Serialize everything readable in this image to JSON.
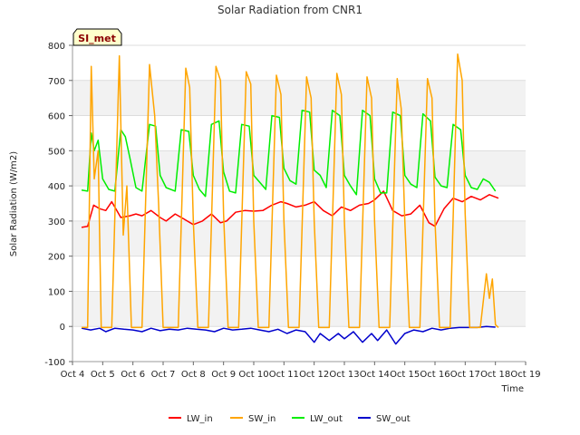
{
  "chart_data": {
    "type": "line",
    "title": "Solar Radiation from CNR1",
    "xlabel": "Time",
    "ylabel": "Solar Radiation (W/m2)",
    "station_label": "SI_met",
    "x_tick_labels": [
      "Oct 4",
      "Oct 5",
      "Oct 6",
      "Oct 7",
      "Oct 8",
      "Oct 9",
      "Oct 10",
      "Oct 11",
      "Oct 12",
      "Oct 13",
      "Oct 14",
      "Oct 15",
      "Oct 16",
      "Oct 17",
      "Oct 18",
      "Oct 19"
    ],
    "y_ticks": [
      -100,
      0,
      100,
      200,
      300,
      400,
      500,
      600,
      700,
      800
    ],
    "xlim": [
      4,
      19
    ],
    "ylim": [
      -100,
      800
    ],
    "grid": true,
    "legend_placement": "bottom",
    "colors": {
      "LW_in": "#ff0000",
      "SW_in": "#ffa500",
      "LW_out": "#00ee00",
      "SW_out": "#0000cc"
    },
    "series": [
      {
        "name": "LW_in",
        "color": "#ff0000",
        "x": [
          4.3,
          4.5,
          4.7,
          4.9,
          5.1,
          5.3,
          5.6,
          5.9,
          6.1,
          6.3,
          6.6,
          6.9,
          7.1,
          7.4,
          7.7,
          8.0,
          8.3,
          8.6,
          8.9,
          9.1,
          9.4,
          9.7,
          10.0,
          10.3,
          10.6,
          10.9,
          11.1,
          11.4,
          11.7,
          12.0,
          12.3,
          12.6,
          12.9,
          13.2,
          13.5,
          13.8,
          14.0,
          14.3,
          14.6,
          14.9,
          15.2,
          15.5,
          15.8,
          16.0,
          16.3,
          16.6,
          16.9,
          17.2,
          17.5,
          17.8,
          18.1
        ],
        "y": [
          282,
          285,
          345,
          335,
          330,
          355,
          310,
          315,
          320,
          315,
          330,
          310,
          300,
          320,
          305,
          290,
          300,
          320,
          295,
          300,
          325,
          330,
          328,
          330,
          345,
          355,
          350,
          340,
          345,
          355,
          330,
          315,
          340,
          330,
          345,
          350,
          360,
          385,
          330,
          315,
          320,
          345,
          295,
          285,
          335,
          365,
          355,
          370,
          360,
          375,
          365
        ]
      },
      {
        "name": "SW_in",
        "color": "#ffa500",
        "x": [
          4.3,
          4.5,
          4.62,
          4.72,
          4.85,
          4.95,
          5.1,
          5.3,
          5.55,
          5.68,
          5.8,
          5.95,
          6.1,
          6.3,
          6.55,
          6.72,
          6.85,
          7.0,
          7.15,
          7.3,
          7.5,
          7.75,
          7.88,
          8.0,
          8.15,
          8.3,
          8.5,
          8.75,
          8.9,
          9.0,
          9.15,
          9.3,
          9.5,
          9.75,
          9.9,
          10.0,
          10.15,
          10.3,
          10.5,
          10.75,
          10.9,
          11.0,
          11.15,
          11.3,
          11.5,
          11.75,
          11.9,
          12.0,
          12.15,
          12.3,
          12.5,
          12.75,
          12.9,
          13.0,
          13.15,
          13.3,
          13.5,
          13.75,
          13.9,
          14.0,
          14.15,
          14.3,
          14.5,
          14.75,
          14.88,
          15.0,
          15.15,
          15.3,
          15.5,
          15.75,
          15.9,
          16.0,
          16.15,
          16.3,
          16.5,
          16.75,
          16.9,
          17.0,
          17.15,
          17.3,
          17.5,
          17.7,
          17.8,
          17.9,
          18.0,
          18.1
        ],
        "y": [
          -3,
          -3,
          740,
          420,
          500,
          -3,
          -3,
          -3,
          770,
          260,
          400,
          -3,
          -3,
          -3,
          745,
          600,
          350,
          -3,
          -3,
          -3,
          -3,
          735,
          680,
          300,
          -3,
          -3,
          -3,
          740,
          700,
          320,
          -3,
          -3,
          -3,
          725,
          690,
          300,
          -3,
          -3,
          -3,
          715,
          660,
          300,
          -3,
          -3,
          -3,
          710,
          650,
          300,
          -3,
          -3,
          -3,
          720,
          660,
          300,
          -3,
          -3,
          -3,
          710,
          650,
          300,
          -3,
          -3,
          -3,
          705,
          620,
          300,
          -3,
          -3,
          -3,
          705,
          650,
          300,
          -3,
          -3,
          -3,
          775,
          700,
          320,
          -3,
          -3,
          -3,
          150,
          80,
          135,
          5,
          -3
        ]
      },
      {
        "name": "LW_out",
        "color": "#00ee00",
        "x": [
          4.3,
          4.5,
          4.62,
          4.72,
          4.85,
          5.0,
          5.2,
          5.4,
          5.6,
          5.75,
          5.9,
          6.1,
          6.3,
          6.55,
          6.75,
          6.9,
          7.1,
          7.4,
          7.6,
          7.85,
          8.0,
          8.2,
          8.4,
          8.6,
          8.85,
          9.0,
          9.2,
          9.4,
          9.6,
          9.85,
          10.0,
          10.2,
          10.4,
          10.6,
          10.85,
          11.0,
          11.2,
          11.4,
          11.6,
          11.85,
          12.0,
          12.2,
          12.4,
          12.6,
          12.85,
          13.0,
          13.2,
          13.4,
          13.6,
          13.85,
          14.0,
          14.2,
          14.4,
          14.6,
          14.85,
          15.0,
          15.2,
          15.4,
          15.6,
          15.85,
          16.0,
          16.2,
          16.4,
          16.6,
          16.85,
          17.0,
          17.2,
          17.4,
          17.6,
          17.8,
          18.0
        ],
        "y": [
          388,
          385,
          550,
          500,
          530,
          420,
          390,
          385,
          560,
          540,
          480,
          395,
          385,
          575,
          570,
          430,
          395,
          385,
          560,
          555,
          430,
          390,
          370,
          575,
          585,
          440,
          385,
          380,
          575,
          570,
          430,
          410,
          390,
          600,
          595,
          450,
          415,
          405,
          615,
          610,
          445,
          430,
          395,
          615,
          600,
          430,
          400,
          375,
          615,
          600,
          420,
          380,
          380,
          610,
          600,
          430,
          405,
          395,
          605,
          585,
          425,
          400,
          395,
          575,
          560,
          430,
          395,
          390,
          420,
          410,
          385
        ]
      },
      {
        "name": "SW_out",
        "color": "#0000cc",
        "x": [
          4.3,
          4.6,
          4.9,
          5.1,
          5.4,
          5.7,
          6.0,
          6.3,
          6.6,
          6.9,
          7.2,
          7.5,
          7.8,
          8.1,
          8.4,
          8.7,
          9.0,
          9.3,
          9.6,
          9.9,
          10.2,
          10.5,
          10.8,
          11.1,
          11.4,
          11.7,
          12.0,
          12.2,
          12.5,
          12.8,
          13.0,
          13.3,
          13.6,
          13.9,
          14.1,
          14.4,
          14.7,
          15.0,
          15.3,
          15.6,
          15.9,
          16.2,
          16.5,
          16.8,
          17.1,
          17.4,
          17.7,
          18.0
        ],
        "y": [
          -5,
          -10,
          -5,
          -15,
          -5,
          -8,
          -10,
          -15,
          -5,
          -12,
          -8,
          -10,
          -5,
          -8,
          -10,
          -15,
          -5,
          -10,
          -8,
          -5,
          -10,
          -15,
          -8,
          -20,
          -10,
          -15,
          -45,
          -20,
          -40,
          -20,
          -35,
          -15,
          -45,
          -20,
          -40,
          -10,
          -50,
          -20,
          -10,
          -15,
          -5,
          -10,
          -5,
          -3,
          -3,
          -3,
          0,
          -2
        ]
      }
    ]
  }
}
